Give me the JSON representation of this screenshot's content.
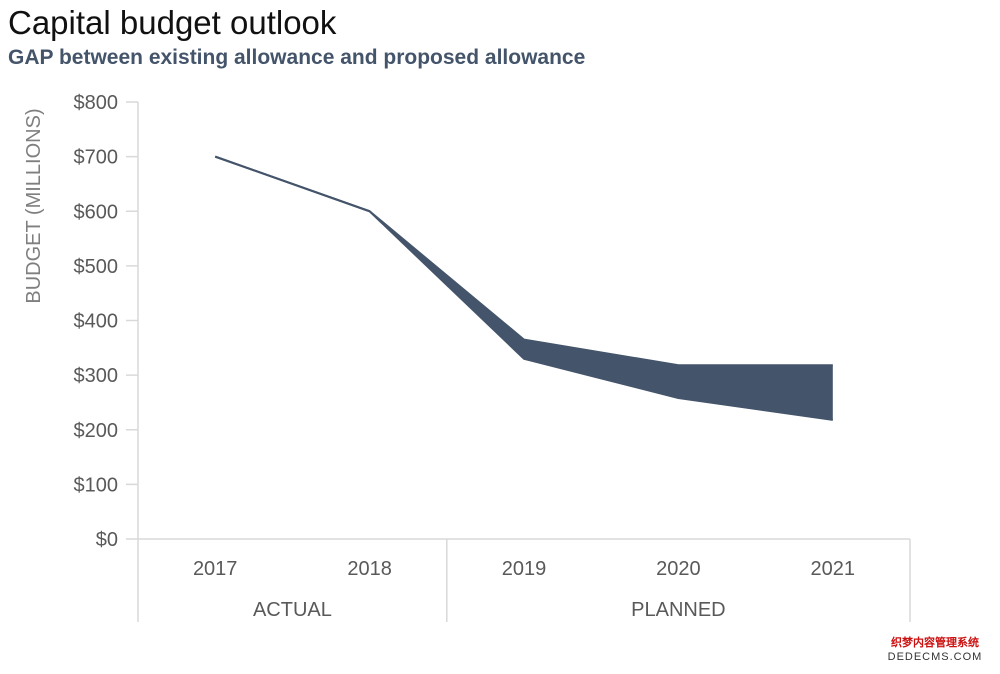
{
  "title": "Capital budget outlook",
  "subtitle": "GAP between existing allowance and proposed allowance",
  "watermark": {
    "line1": "织梦内容管理系统",
    "line2": "DEDECMS.COM"
  },
  "colors": {
    "series": "#44546a",
    "axis": "#d9d9d9",
    "tick_text": "#595959",
    "label_text": "#7f7f7f"
  },
  "chart_data": {
    "type": "area",
    "title": "Capital budget outlook",
    "subtitle": "GAP between existing allowance and proposed allowance",
    "ylabel": "BUDGET (MILLIONS)",
    "xlabel": "",
    "categories": [
      "2017",
      "2018",
      "2019",
      "2020",
      "2021"
    ],
    "groups": [
      {
        "label": "ACTUAL",
        "categories": [
          "2017",
          "2018"
        ]
      },
      {
        "label": "PLANNED",
        "categories": [
          "2019",
          "2020",
          "2021"
        ]
      }
    ],
    "y_ticks": [
      "$0",
      "$100",
      "$200",
      "$300",
      "$400",
      "$500",
      "$600",
      "$700",
      "$800"
    ],
    "ylim": [
      0,
      800
    ],
    "grid": false,
    "legend": "none",
    "series": [
      {
        "values": [
          700,
          600,
          365,
          318,
          318
        ]
      },
      {
        "values": [
          700,
          600,
          330,
          258,
          218
        ]
      }
    ]
  }
}
